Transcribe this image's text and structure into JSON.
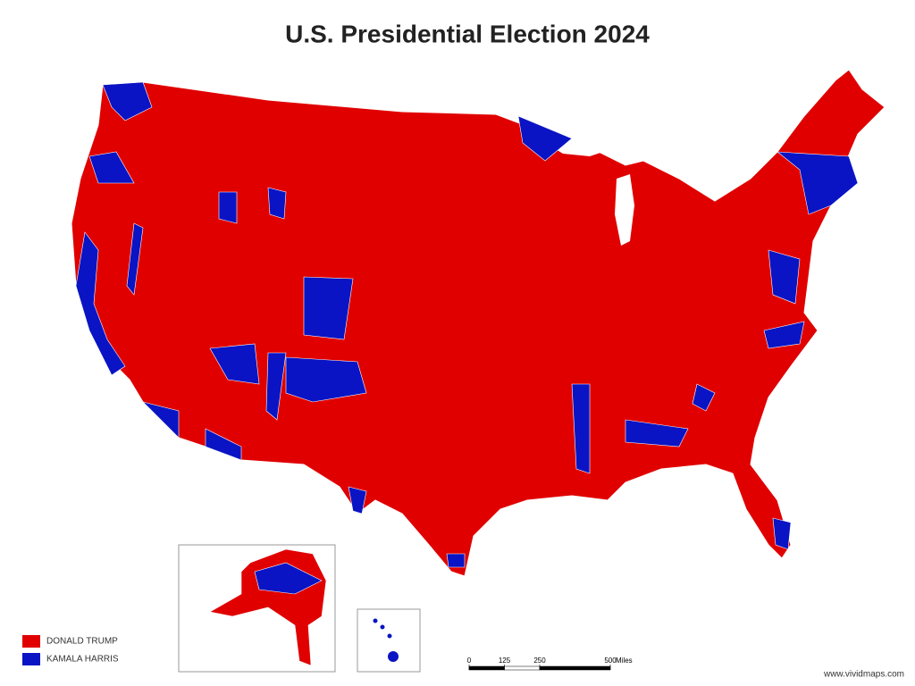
{
  "title": "U.S. Presidential Election 2024",
  "legend": [
    {
      "label": "DONALD TRUMP",
      "color": "#e00000"
    },
    {
      "label": "KAMALA HARRIS",
      "color": "#0a14c4"
    }
  ],
  "scale_bar": {
    "ticks": [
      0,
      125,
      250,
      500
    ],
    "unit": "Miles"
  },
  "credit": "www.vividmaps.com"
}
